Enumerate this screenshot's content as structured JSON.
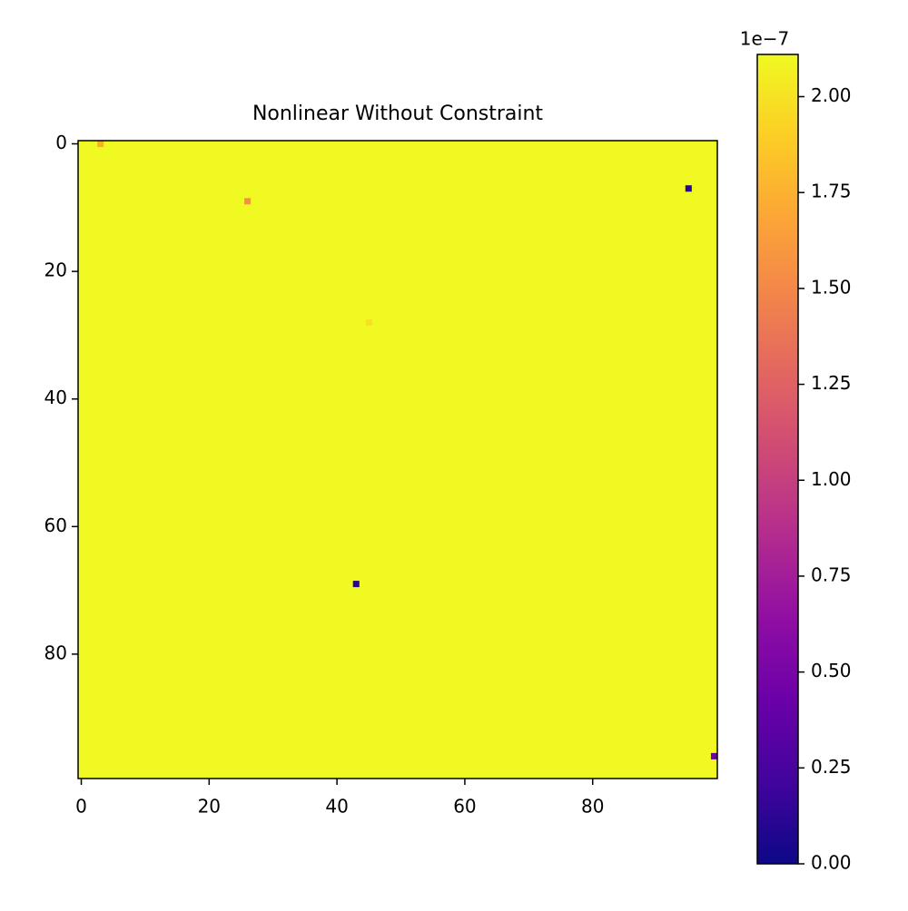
{
  "chart_data": {
    "type": "heatmap",
    "title": "Nonlinear Without Constraint",
    "colormap": "plasma",
    "xlim": [
      -0.5,
      99.5
    ],
    "ylim": [
      99.5,
      -0.5
    ],
    "xticks": [
      0,
      20,
      40,
      60,
      80
    ],
    "yticks": [
      0,
      20,
      40,
      60,
      80
    ],
    "fill_value": 2.11,
    "cells": [
      {
        "row": 0,
        "col": 3,
        "value": 1.72
      },
      {
        "row": 9,
        "col": 26,
        "value": 1.55
      },
      {
        "row": 28,
        "col": 45,
        "value": 1.98
      },
      {
        "row": 7,
        "col": 95,
        "value": 0.1
      },
      {
        "row": 69,
        "col": 43,
        "value": 0.12
      },
      {
        "row": 96,
        "col": 99,
        "value": 0.45
      }
    ],
    "colorbar": {
      "clim": [
        0,
        2.11
      ],
      "offset_label": "1e−7",
      "ticks": [
        {
          "value": 0,
          "label": "0.00"
        },
        {
          "value": 0.25,
          "label": "0.25"
        },
        {
          "value": 0.5,
          "label": "0.50"
        },
        {
          "value": 0.75,
          "label": "0.75"
        },
        {
          "value": 1,
          "label": "1.00"
        },
        {
          "value": 1.25,
          "label": "1.25"
        },
        {
          "value": 1.5,
          "label": "1.50"
        },
        {
          "value": 1.75,
          "label": "1.75"
        },
        {
          "value": 2,
          "label": "2.00"
        }
      ]
    }
  }
}
